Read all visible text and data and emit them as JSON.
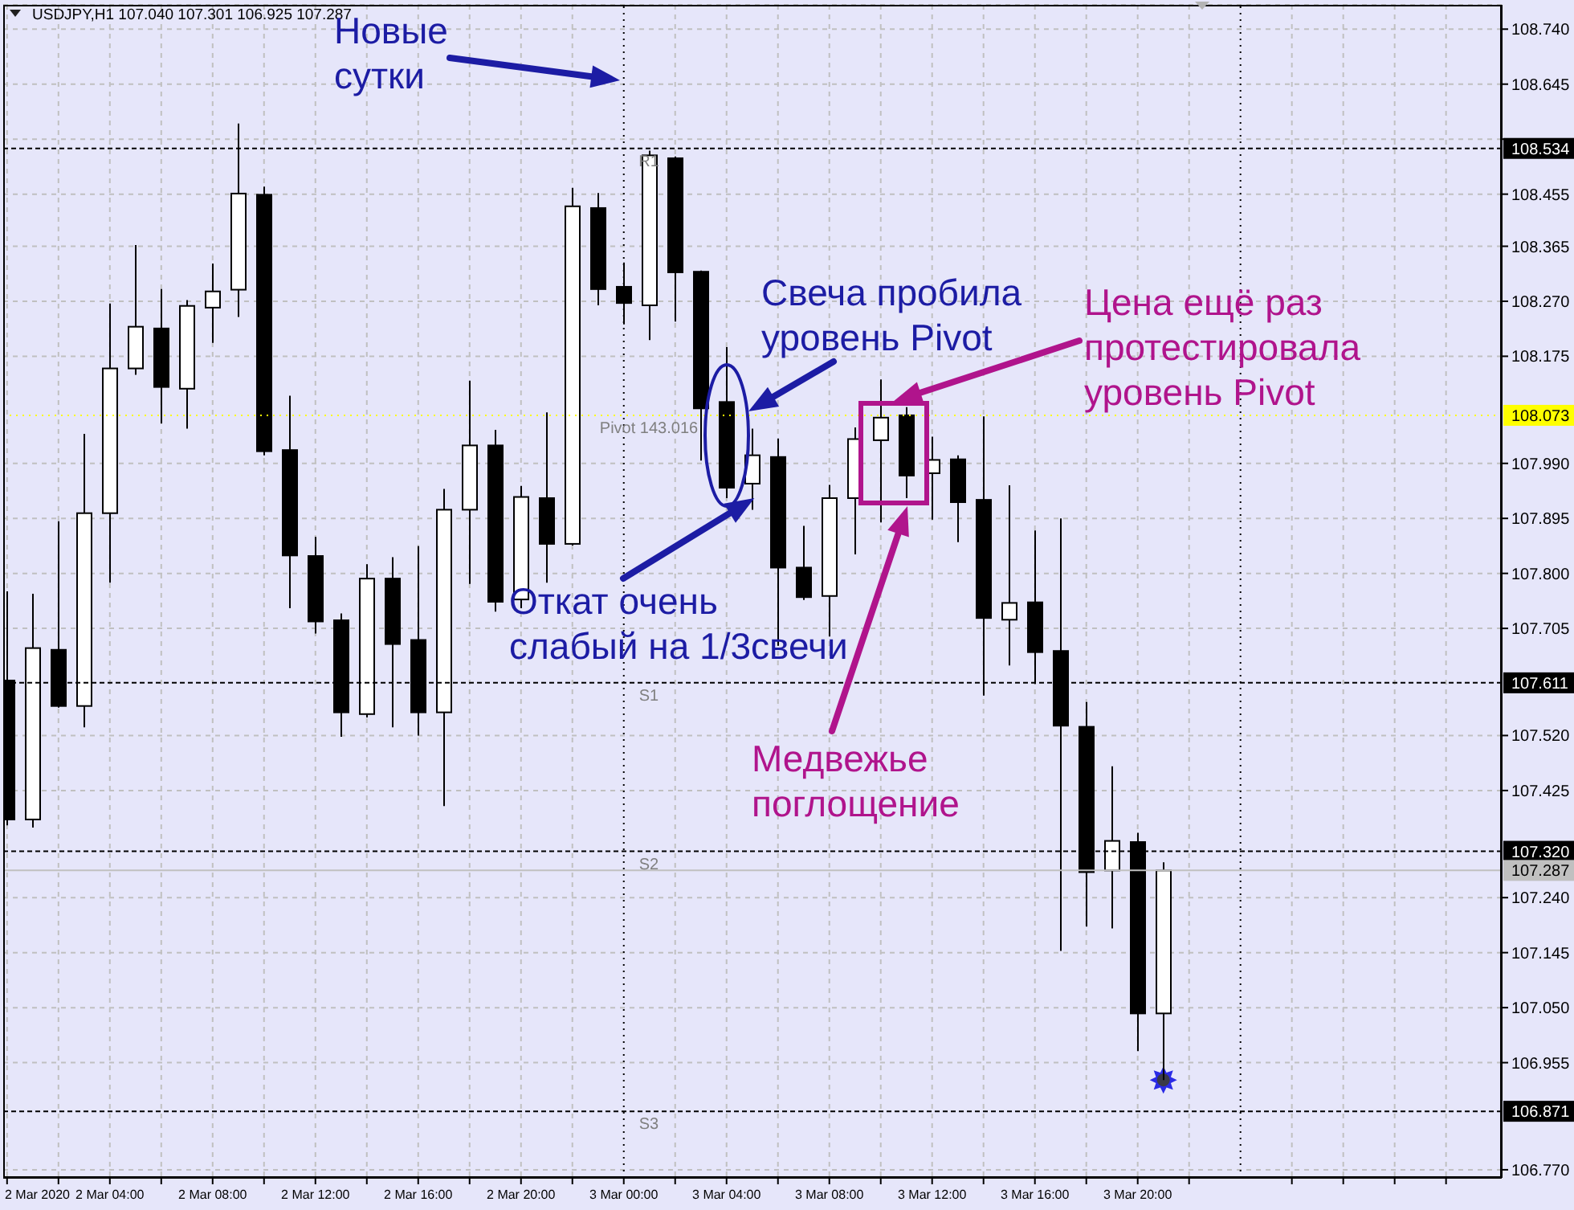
{
  "chart_data": {
    "type": "candlestick",
    "title": "USDJPY,H1 107.040 107.301 106.925 107.287",
    "x": [
      "2020-03-02T00:00",
      "2020-03-02T01:00",
      "2020-03-02T02:00",
      "2020-03-02T03:00",
      "2020-03-02T04:00",
      "2020-03-02T05:00",
      "2020-03-02T06:00",
      "2020-03-02T07:00",
      "2020-03-02T08:00",
      "2020-03-02T09:00",
      "2020-03-02T10:00",
      "2020-03-02T11:00",
      "2020-03-02T12:00",
      "2020-03-02T13:00",
      "2020-03-02T14:00",
      "2020-03-02T15:00",
      "2020-03-02T16:00",
      "2020-03-02T17:00",
      "2020-03-02T18:00",
      "2020-03-02T19:00",
      "2020-03-02T20:00",
      "2020-03-02T21:00",
      "2020-03-02T22:00",
      "2020-03-02T23:00",
      "2020-03-03T00:00",
      "2020-03-03T01:00",
      "2020-03-03T02:00",
      "2020-03-03T03:00",
      "2020-03-03T04:00",
      "2020-03-03T05:00",
      "2020-03-03T06:00",
      "2020-03-03T07:00",
      "2020-03-03T08:00",
      "2020-03-03T09:00",
      "2020-03-03T10:00",
      "2020-03-03T11:00",
      "2020-03-03T12:00",
      "2020-03-03T13:00",
      "2020-03-03T14:00",
      "2020-03-03T15:00",
      "2020-03-03T16:00",
      "2020-03-03T17:00",
      "2020-03-03T18:00",
      "2020-03-03T19:00",
      "2020-03-03T20:00",
      "2020-03-03T21:00"
    ],
    "ohlc": [
      [
        107.615,
        107.769,
        107.365,
        107.375
      ],
      [
        107.375,
        107.765,
        107.361,
        107.671
      ],
      [
        107.668,
        107.89,
        107.568,
        107.571
      ],
      [
        107.571,
        108.041,
        107.534,
        107.904
      ],
      [
        107.904,
        108.266,
        107.784,
        108.154
      ],
      [
        108.154,
        108.367,
        108.143,
        108.226
      ],
      [
        108.223,
        108.291,
        108.059,
        108.122
      ],
      [
        108.119,
        108.272,
        108.05,
        108.262
      ],
      [
        108.259,
        108.335,
        108.198,
        108.287
      ],
      [
        108.29,
        108.577,
        108.243,
        108.456
      ],
      [
        108.454,
        108.468,
        108.004,
        108.011
      ],
      [
        108.013,
        108.107,
        107.74,
        107.831
      ],
      [
        107.83,
        107.863,
        107.696,
        107.717
      ],
      [
        107.719,
        107.731,
        107.518,
        107.56
      ],
      [
        107.557,
        107.816,
        107.551,
        107.791
      ],
      [
        107.791,
        107.828,
        107.534,
        107.678
      ],
      [
        107.685,
        107.847,
        107.52,
        107.56
      ],
      [
        107.56,
        107.946,
        107.398,
        107.91
      ],
      [
        107.91,
        108.133,
        107.782,
        108.021
      ],
      [
        108.021,
        108.048,
        107.734,
        107.751
      ],
      [
        107.755,
        107.951,
        107.74,
        107.932
      ],
      [
        107.93,
        108.078,
        107.784,
        107.851
      ],
      [
        107.851,
        108.466,
        107.848,
        108.434
      ],
      [
        108.431,
        108.457,
        108.263,
        108.291
      ],
      [
        108.295,
        108.337,
        108.23,
        108.267
      ],
      [
        108.263,
        108.53,
        108.203,
        108.522
      ],
      [
        108.517,
        108.52,
        108.235,
        108.32
      ],
      [
        108.321,
        108.323,
        107.995,
        108.085
      ],
      [
        108.096,
        108.191,
        107.93,
        107.948
      ],
      [
        107.955,
        108.05,
        107.91,
        108.004
      ],
      [
        108.001,
        108.033,
        107.675,
        107.81
      ],
      [
        107.81,
        107.882,
        107.754,
        107.759
      ],
      [
        107.761,
        107.953,
        107.691,
        107.93
      ],
      [
        107.93,
        108.052,
        107.833,
        108.032
      ],
      [
        108.03,
        108.135,
        107.888,
        108.069
      ],
      [
        108.073,
        108.087,
        107.93,
        107.969
      ],
      [
        107.973,
        108.036,
        107.893,
        107.996
      ],
      [
        107.997,
        108.004,
        107.854,
        107.923
      ],
      [
        107.927,
        108.071,
        107.589,
        107.723
      ],
      [
        107.72,
        107.952,
        107.641,
        107.749
      ],
      [
        107.75,
        107.874,
        107.609,
        107.664
      ],
      [
        107.666,
        107.895,
        107.148,
        107.537
      ],
      [
        107.535,
        107.578,
        107.19,
        107.284
      ],
      [
        107.287,
        107.467,
        107.187,
        107.338
      ],
      [
        107.336,
        107.352,
        106.975,
        107.04
      ],
      [
        107.04,
        107.301,
        106.925,
        107.287
      ]
    ],
    "colors": [
      "#000000",
      "#ffffff",
      "#000000",
      "#ffffff",
      "#ffffff",
      "#ffffff",
      "#000000",
      "#ffffff",
      "#ffffff",
      "#ffffff",
      "#000000",
      "#000000",
      "#000000",
      "#000000",
      "#ffffff",
      "#000000",
      "#000000",
      "#ffffff",
      "#ffffff",
      "#000000",
      "#ffffff",
      "#000000",
      "#ffffff",
      "#000000",
      "#000000",
      "#ffffff",
      "#000000",
      "#000000",
      "#000000",
      "#ffffff",
      "#000000",
      "#000000",
      "#ffffff",
      "#ffffff",
      "#ffffff",
      "#000000",
      "#ffffff",
      "#000000",
      "#000000",
      "#ffffff",
      "#000000",
      "#000000",
      "#000000",
      "#ffffff",
      "#000000",
      "#ffffff"
    ],
    "xlim": [
      "2020-03-01T23:51",
      "2020-03-04T10:10"
    ],
    "xticks": [
      {
        "value": "2020-03-02T00:00",
        "label": "2 Mar 2020"
      },
      {
        "value": "2020-03-02T02:00",
        "label": null
      },
      {
        "value": "2020-03-02T04:00",
        "label": "2 Mar 04:00"
      },
      {
        "value": "2020-03-02T06:00",
        "label": null
      },
      {
        "value": "2020-03-02T08:00",
        "label": "2 Mar 08:00"
      },
      {
        "value": "2020-03-02T10:00",
        "label": null
      },
      {
        "value": "2020-03-02T12:00",
        "label": "2 Mar 12:00"
      },
      {
        "value": "2020-03-02T14:00",
        "label": null
      },
      {
        "value": "2020-03-02T16:00",
        "label": "2 Mar 16:00"
      },
      {
        "value": "2020-03-02T18:00",
        "label": null
      },
      {
        "value": "2020-03-02T20:00",
        "label": "2 Mar 20:00"
      },
      {
        "value": "2020-03-02T22:00",
        "label": null
      },
      {
        "value": "2020-03-03T00:00",
        "label": "3 Mar 00:00"
      },
      {
        "value": "2020-03-03T02:00",
        "label": null
      },
      {
        "value": "2020-03-03T04:00",
        "label": "3 Mar 04:00"
      },
      {
        "value": "2020-03-03T06:00",
        "label": null
      },
      {
        "value": "2020-03-03T08:00",
        "label": "3 Mar 08:00"
      },
      {
        "value": "2020-03-03T10:00",
        "label": null
      },
      {
        "value": "2020-03-03T12:00",
        "label": "3 Mar 12:00"
      },
      {
        "value": "2020-03-03T14:00",
        "label": null
      },
      {
        "value": "2020-03-03T16:00",
        "label": "3 Mar 16:00"
      },
      {
        "value": "2020-03-03T18:00",
        "label": null
      },
      {
        "value": "2020-03-03T20:00",
        "label": "3 Mar 20:00"
      },
      {
        "value": "2020-03-03T22:00",
        "label": null
      },
      {
        "value": "2020-03-04T02:00",
        "label": null
      },
      {
        "value": "2020-03-04T04:00",
        "label": null
      },
      {
        "value": "2020-03-04T06:00",
        "label": null
      },
      {
        "value": "2020-03-04T08:00",
        "label": null
      }
    ],
    "ylim": [
      106.756,
      108.782
    ],
    "yticks": [
      {
        "value": 108.74,
        "label": "108.740"
      },
      108.645,
      {
        "value": 108.55,
        "label": null
      },
      108.455,
      108.365,
      {
        "value": 108.27,
        "label": "108.270"
      },
      108.175,
      {
        "value": 107.99,
        "label": "107.990"
      },
      107.895,
      {
        "value": 107.8,
        "label": "107.800"
      },
      107.705,
      {
        "value": 107.52,
        "label": "107.520"
      },
      107.425,
      {
        "value": 107.24,
        "label": "107.240"
      },
      107.145,
      {
        "value": 107.05,
        "label": "107.050"
      },
      106.955,
      {
        "value": 106.77,
        "label": "106.770"
      }
    ],
    "grid": true,
    "ref_lines": [
      {
        "axis": "y",
        "value": 108.534,
        "label": "R1",
        "color": "#000000",
        "line_style": "dashed"
      },
      {
        "axis": "y",
        "value": 108.073,
        "label": "Pivot 143.016",
        "color": "#ffff00",
        "line_style": "dotted"
      },
      {
        "axis": "y",
        "value": 107.611,
        "label": "S1",
        "color": "#000000",
        "line_style": "dashed"
      },
      {
        "axis": "y",
        "value": 107.32,
        "label": "S2",
        "color": "#000000",
        "line_style": "dashed"
      },
      {
        "axis": "y",
        "value": 106.871,
        "label": "S3",
        "color": "#000000",
        "line_style": "dashed"
      },
      {
        "axis": "y",
        "value": 107.287,
        "label": null,
        "color": "#c0c0c0",
        "line_style": "solid"
      },
      {
        "axis": "x",
        "value": "2020-03-03T00:00",
        "label": null,
        "color": "#000000",
        "line_style": "dotted"
      },
      {
        "axis": "x",
        "value": "2020-03-04T00:00",
        "label": null,
        "color": "#000000",
        "line_style": "dotted"
      }
    ],
    "annotations": [
      "Новые\nсутки",
      "Свеча пробила\nуровень Pivot",
      {
        "text": "Откат очень\nслабый на 1/3свечи",
        "x": "2020-03-03T05:05",
        "y": 107.93
      },
      "Цена ещё раз\nпротестировала\nуровень Pivot",
      "Медвежье\nпоглощение",
      {
        "text": "108.534",
        "x": "2020-03-04T10:10",
        "y": 108.534
      },
      {
        "text": "108.073",
        "x": "2020-03-04T10:10",
        "y": 108.073
      },
      {
        "text": "107.611",
        "x": "2020-03-04T10:10",
        "y": 107.611
      },
      {
        "text": "107.320",
        "x": "2020-03-04T10:10",
        "y": 107.32
      },
      {
        "text": "107.287",
        "x": "2020-03-04T10:10",
        "y": 107.287
      },
      {
        "text": "106.871",
        "x": "2020-03-04T10:10",
        "y": 106.871
      }
    ]
  }
}
